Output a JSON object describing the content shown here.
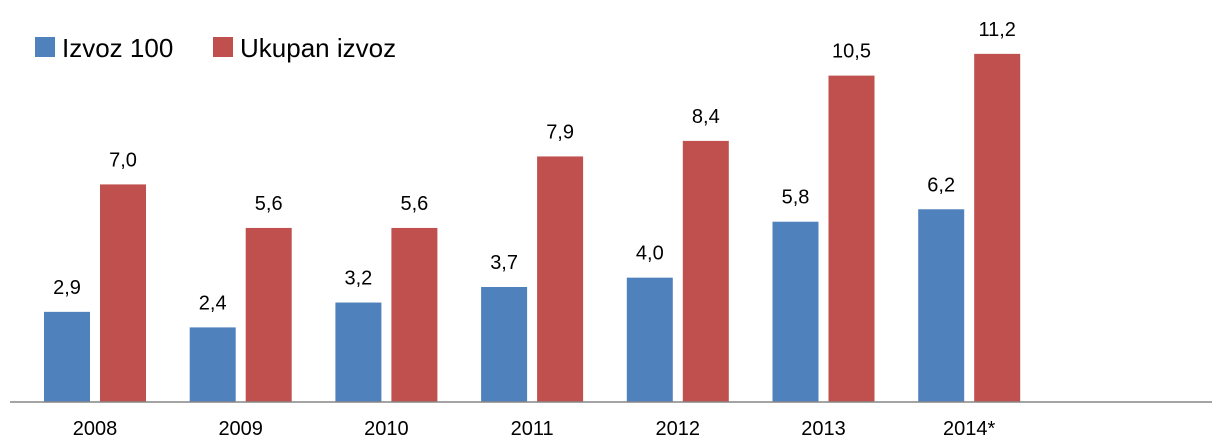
{
  "chart_data": {
    "type": "bar",
    "categories": [
      "2008",
      "2009",
      "2010",
      "2011",
      "2012",
      "2013",
      "2014*"
    ],
    "series": [
      {
        "name": "Izvoz 100",
        "color": "#4f81bd",
        "values": [
          2.9,
          2.4,
          3.2,
          3.7,
          4.0,
          5.8,
          6.2
        ],
        "value_labels": [
          "2,9",
          "2,4",
          "3,2",
          "3,7",
          "4,0",
          "5,8",
          "6,2"
        ]
      },
      {
        "name": "Ukupan izvoz",
        "color": "#c0504d",
        "values": [
          7.0,
          5.6,
          5.6,
          7.9,
          8.4,
          10.5,
          11.2
        ],
        "value_labels": [
          "7,0",
          "5,6",
          "5,6",
          "7,9",
          "8,4",
          "10,5",
          "11,2"
        ]
      }
    ],
    "ylim": [
      0,
      12
    ],
    "legend": "top-left"
  }
}
